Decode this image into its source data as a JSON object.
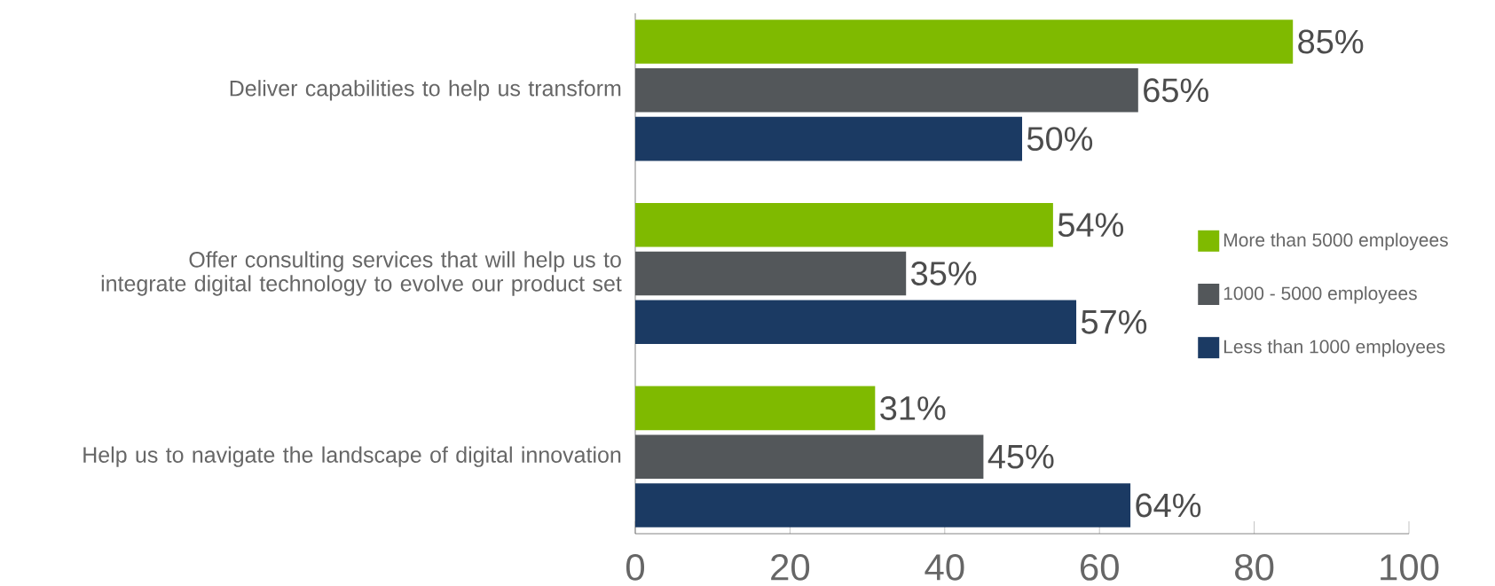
{
  "chart_data": {
    "type": "bar",
    "orientation": "horizontal",
    "categories": [
      "Deliver capabilities to help us transform",
      "Offer consulting services that will help us to integrate digital technology to evolve our product set",
      "Help us to navigate the landscape of digital innovation"
    ],
    "series": [
      {
        "name": "More than 5000 employees",
        "color": "#7fba00",
        "values": [
          85,
          54,
          31
        ],
        "value_labels": [
          "85%",
          "54%",
          "31%"
        ]
      },
      {
        "name": "1000 - 5000 employees",
        "color": "#53575a",
        "values": [
          65,
          35,
          45
        ],
        "value_labels": [
          "65%",
          "35%",
          "45%"
        ]
      },
      {
        "name": "Less than 1000 employees",
        "color": "#1b3a63",
        "values": [
          50,
          57,
          64
        ],
        "value_labels": [
          "50%",
          "57%",
          "64%"
        ]
      }
    ],
    "xlim": [
      0,
      100
    ],
    "xticks": [
      0,
      20,
      40,
      60,
      80,
      100
    ],
    "legend": "right",
    "grid": false
  }
}
